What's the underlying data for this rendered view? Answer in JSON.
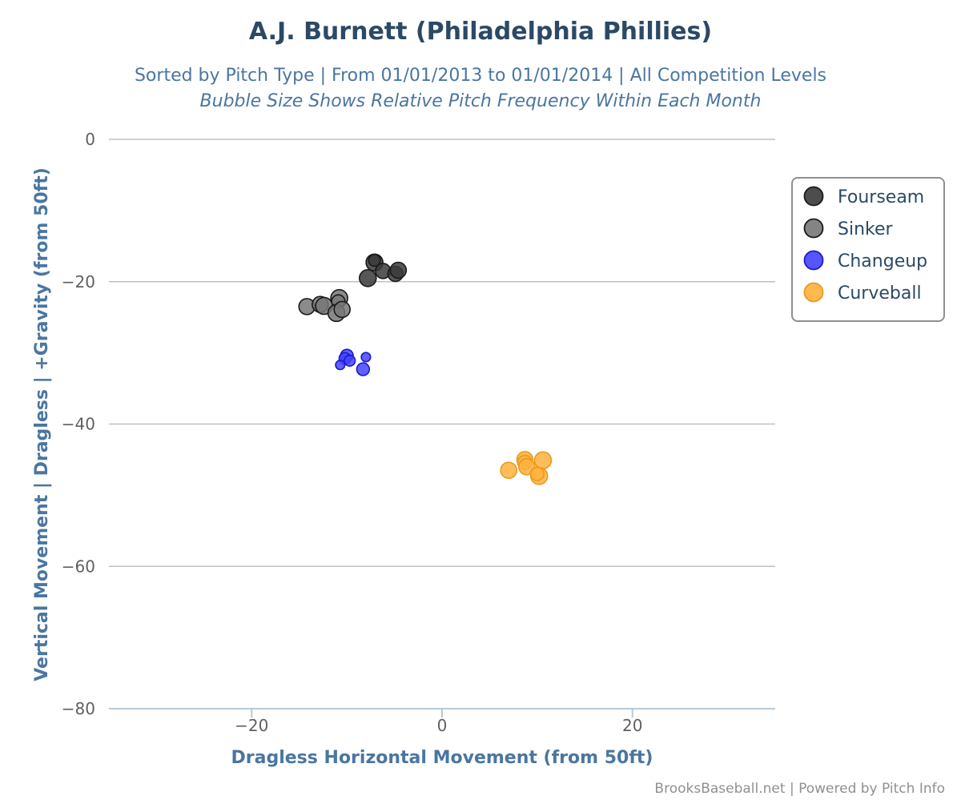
{
  "chart_data": {
    "type": "scatter",
    "title": "A.J. Burnett (Philadelphia Phillies)",
    "subtitle": "Sorted by Pitch Type | From 01/01/2013 to 01/01/2014 | All Competition Levels",
    "subtitle2": "Bubble Size Shows Relative Pitch Frequency Within Each Month",
    "xlabel": "Dragless Horizontal Movement (from 50ft)",
    "ylabel": "Vertical Movement | Dragless | +Gravity (from 50ft)",
    "xlim": [
      -35,
      35
    ],
    "ylim": [
      -80,
      0
    ],
    "xticks": [
      -20,
      0,
      20
    ],
    "yticks": [
      0,
      -20,
      -40,
      -60,
      -80
    ],
    "xtick_labels": [
      "−20",
      "0",
      "20"
    ],
    "ytick_labels": [
      "0",
      "−20",
      "−40",
      "−60",
      "−80"
    ],
    "grid": "horizontal",
    "legend_position": "right",
    "credit": "BrooksBaseball.net | Powered by Pitch Info",
    "series": [
      {
        "name": "Fourseam",
        "color": "#3a3a3a",
        "points": [
          {
            "x": -7.1,
            "y": -17.3,
            "size": 1.0
          },
          {
            "x": -7.1,
            "y": -17.0,
            "size": 0.7
          },
          {
            "x": -6.2,
            "y": -18.5,
            "size": 0.9
          },
          {
            "x": -4.9,
            "y": -18.9,
            "size": 0.9
          },
          {
            "x": -4.6,
            "y": -18.4,
            "size": 0.95
          },
          {
            "x": -7.8,
            "y": -19.5,
            "size": 1.0
          }
        ]
      },
      {
        "name": "Sinker",
        "color": "#777777",
        "points": [
          {
            "x": -14.2,
            "y": -23.5,
            "size": 0.95
          },
          {
            "x": -12.8,
            "y": -23.2,
            "size": 0.95
          },
          {
            "x": -12.4,
            "y": -23.4,
            "size": 1.0
          },
          {
            "x": -10.8,
            "y": -22.3,
            "size": 1.0
          },
          {
            "x": -10.9,
            "y": -22.8,
            "size": 0.8
          },
          {
            "x": -11.1,
            "y": -24.4,
            "size": 1.0
          },
          {
            "x": -10.5,
            "y": -23.9,
            "size": 0.95
          }
        ]
      },
      {
        "name": "Changeup",
        "color": "#4444ff",
        "points": [
          {
            "x": -10.0,
            "y": -30.4,
            "size": 0.75
          },
          {
            "x": -10.2,
            "y": -30.8,
            "size": 0.7
          },
          {
            "x": -9.7,
            "y": -31.1,
            "size": 0.65
          },
          {
            "x": -10.7,
            "y": -31.7,
            "size": 0.55
          },
          {
            "x": -8.3,
            "y": -32.3,
            "size": 0.75
          },
          {
            "x": -8.0,
            "y": -30.6,
            "size": 0.55
          }
        ]
      },
      {
        "name": "Curveball",
        "color": "#ffb13d",
        "points": [
          {
            "x": 7.0,
            "y": -46.5,
            "size": 0.95
          },
          {
            "x": 8.7,
            "y": -45.0,
            "size": 0.95
          },
          {
            "x": 8.7,
            "y": -45.4,
            "size": 0.85
          },
          {
            "x": 8.9,
            "y": -46.0,
            "size": 0.95
          },
          {
            "x": 10.6,
            "y": -45.1,
            "size": 1.0
          },
          {
            "x": 10.2,
            "y": -47.3,
            "size": 1.0
          },
          {
            "x": 10.0,
            "y": -47.0,
            "size": 0.8
          }
        ]
      }
    ]
  }
}
